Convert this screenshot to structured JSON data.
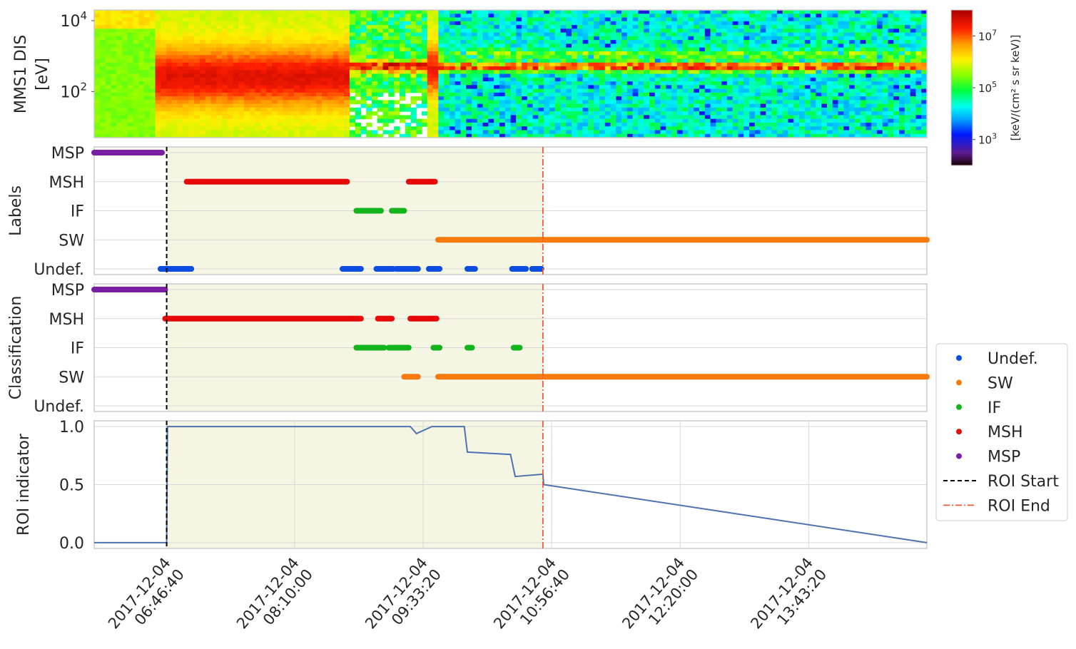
{
  "chart_data": [
    {
      "type": "heatmap",
      "ylabel_lines": [
        "MMS1 DIS",
        "[eV]"
      ],
      "yscale": "log",
      "ylim": [
        5,
        20000
      ],
      "yticks": [
        {
          "value": 100,
          "base": "10",
          "exp": "2"
        },
        {
          "value": 10000,
          "base": "10",
          "exp": "4"
        }
      ],
      "colorbar": {
        "label": "[keV/(cm² s sr keV)]",
        "scale": "log",
        "range": [
          100,
          100000000
        ],
        "ticks": [
          {
            "value": 1000,
            "base": "10",
            "exp": "3"
          },
          {
            "value": 100000,
            "base": "10",
            "exp": "5"
          },
          {
            "value": 10000000,
            "base": "10",
            "exp": "7"
          }
        ]
      },
      "grid": false
    },
    {
      "type": "scatter",
      "ylabel": "Labels",
      "categories": [
        "MSP",
        "MSH",
        "IF",
        "SW",
        "Undef."
      ],
      "segments": [
        {
          "class": "MSP",
          "start": "06:00:00",
          "end": "06:44:00"
        },
        {
          "class": "Undef.",
          "start": "06:43:00",
          "end": "07:03:00"
        },
        {
          "class": "MSH",
          "start": "07:00:00",
          "end": "08:44:00"
        },
        {
          "class": "Undef.",
          "start": "08:41:00",
          "end": "08:53:00"
        },
        {
          "class": "IF",
          "start": "08:50:00",
          "end": "09:06:00"
        },
        {
          "class": "Undef.",
          "start": "09:03:00",
          "end": "09:14:00"
        },
        {
          "class": "IF",
          "start": "09:13:00",
          "end": "09:21:00"
        },
        {
          "class": "Undef.",
          "start": "09:16:00",
          "end": "09:30:00"
        },
        {
          "class": "MSH",
          "start": "09:24:00",
          "end": "09:41:00"
        },
        {
          "class": "Undef.",
          "start": "09:37:00",
          "end": "09:44:00"
        },
        {
          "class": "SW",
          "start": "09:43:00",
          "end": "10:45:00"
        },
        {
          "class": "Undef.",
          "start": "10:02:00",
          "end": "10:07:00"
        },
        {
          "class": "Undef.",
          "start": "10:31:00",
          "end": "10:40:00"
        },
        {
          "class": "Undef.",
          "start": "10:44:00",
          "end": "10:50:00"
        },
        {
          "class": "SW",
          "start": "10:45:00",
          "end": "15:00:00"
        }
      ]
    },
    {
      "type": "scatter",
      "ylabel": "Classification",
      "categories": [
        "MSP",
        "MSH",
        "IF",
        "SW",
        "Undef."
      ],
      "segments": [
        {
          "class": "MSP",
          "start": "06:00:00",
          "end": "06:46:00"
        },
        {
          "class": "MSH",
          "start": "06:46:00",
          "end": "08:53:00"
        },
        {
          "class": "IF",
          "start": "08:50:00",
          "end": "09:08:00"
        },
        {
          "class": "MSH",
          "start": "09:04:00",
          "end": "09:13:00"
        },
        {
          "class": "IF",
          "start": "09:11:00",
          "end": "09:24:00"
        },
        {
          "class": "MSH",
          "start": "09:25:00",
          "end": "09:42:00"
        },
        {
          "class": "SW",
          "start": "09:21:00",
          "end": "09:30:00"
        },
        {
          "class": "IF",
          "start": "09:40:00",
          "end": "09:44:00"
        },
        {
          "class": "SW",
          "start": "09:43:00",
          "end": "15:00:00"
        },
        {
          "class": "IF",
          "start": "10:02:00",
          "end": "10:05:00"
        },
        {
          "class": "IF",
          "start": "10:32:00",
          "end": "10:36:00"
        }
      ]
    },
    {
      "type": "line",
      "ylabel": "ROI indicator",
      "ylim": [
        -0.05,
        1.05
      ],
      "yticks": [
        {
          "value": 0,
          "label": "0.0"
        },
        {
          "value": 0.5,
          "label": "0.5"
        },
        {
          "value": 1,
          "label": "1.0"
        }
      ],
      "x": [
        "06:00:00",
        "06:47:00",
        "06:47:30",
        "09:21:00",
        "09:25:00",
        "09:29:00",
        "09:39:00",
        "10:00:00",
        "10:02:00",
        "10:30:00",
        "10:33:00",
        "10:51:00",
        "10:51:30",
        "15:00:00"
      ],
      "y": [
        0,
        0,
        1,
        1,
        1,
        0.94,
        1,
        1,
        0.78,
        0.76,
        0.57,
        0.59,
        0.5,
        0
      ]
    }
  ],
  "x_axis": {
    "range": [
      "2017-12-04 06:00:00",
      "2017-12-04 15:00:00"
    ],
    "ticks": [
      {
        "time": "06:46:40",
        "line1": "2017-12-04",
        "line2": "06:46:40"
      },
      {
        "time": "08:10:00",
        "line1": "2017-12-04",
        "line2": "08:10:00"
      },
      {
        "time": "09:33:20",
        "line1": "2017-12-04",
        "line2": "09:33:20"
      },
      {
        "time": "10:56:40",
        "line1": "2017-12-04",
        "line2": "10:56:40"
      },
      {
        "time": "12:20:00",
        "line1": "2017-12-04",
        "line2": "12:20:00"
      },
      {
        "time": "13:43:20",
        "line1": "2017-12-04",
        "line2": "13:43:20"
      }
    ]
  },
  "roi": {
    "start": "06:47:00",
    "end": "10:51:00"
  },
  "colors": {
    "Undef.": "#0a4de0",
    "SW": "#f77b0f",
    "IF": "#14b41c",
    "MSH": "#e60a08",
    "MSP": "#7a1fa2",
    "roi_start": "#000000",
    "roi_end": "#f05a38",
    "roi_fill": "#f5f5e3",
    "line": "#4c72b0"
  },
  "legend": {
    "placement": "right",
    "items": [
      {
        "label": "Undef.",
        "kind": "dot",
        "color_key": "Undef."
      },
      {
        "label": "SW",
        "kind": "dot",
        "color_key": "SW"
      },
      {
        "label": "IF",
        "kind": "dot",
        "color_key": "IF"
      },
      {
        "label": "MSH",
        "kind": "dot",
        "color_key": "MSH"
      },
      {
        "label": "MSP",
        "kind": "dot",
        "color_key": "MSP"
      },
      {
        "label": "ROI Start",
        "kind": "dashed",
        "color_key": "roi_start"
      },
      {
        "label": "ROI End",
        "kind": "dashdot",
        "color_key": "roi_end"
      }
    ]
  }
}
